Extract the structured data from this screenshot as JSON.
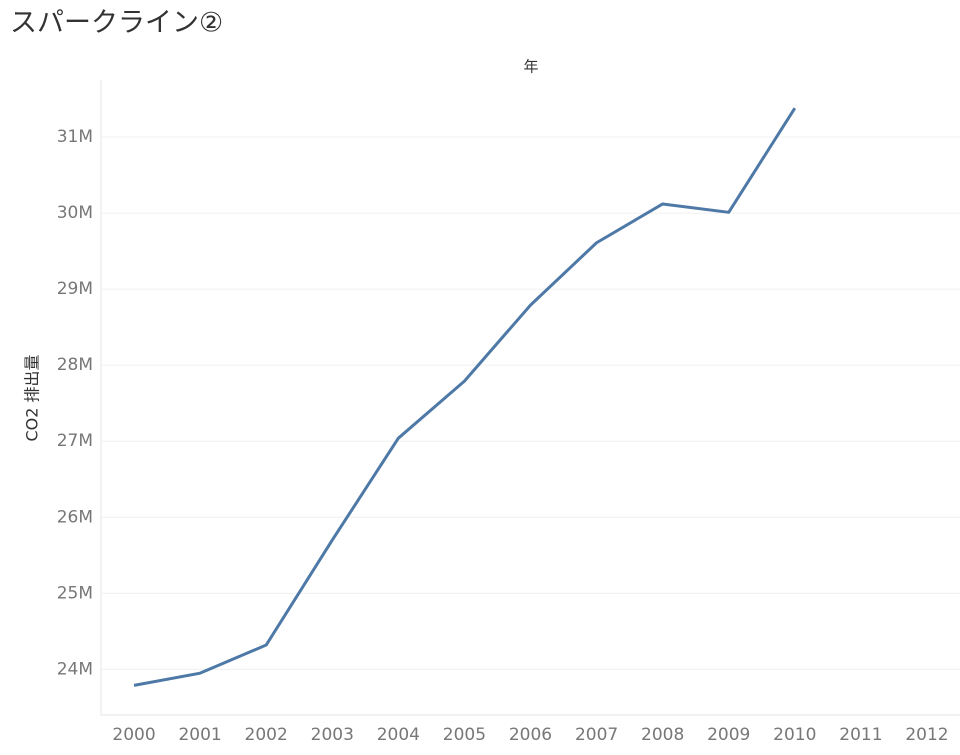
{
  "chart_data": {
    "type": "line",
    "title": "スパークライン②",
    "x_axis_title": "年",
    "y_axis_title": "CO2 排出量",
    "categories": [
      "2000",
      "2001",
      "2002",
      "2003",
      "2004",
      "2005",
      "2006",
      "2007",
      "2008",
      "2009",
      "2010",
      "2011",
      "2012"
    ],
    "series": [
      {
        "name": "CO2 排出量",
        "color": "#4e79a7",
        "values": [
          23790000,
          23950000,
          24320000,
          25700000,
          27040000,
          27790000,
          28790000,
          29610000,
          30120000,
          30010000,
          31380000,
          null,
          null
        ]
      }
    ],
    "ylim": [
      23400000,
      31750000
    ],
    "yticks": [
      {
        "value": 24000000,
        "label": "24M"
      },
      {
        "value": 25000000,
        "label": "25M"
      },
      {
        "value": 26000000,
        "label": "26M"
      },
      {
        "value": 27000000,
        "label": "27M"
      },
      {
        "value": 28000000,
        "label": "28M"
      },
      {
        "value": 29000000,
        "label": "29M"
      },
      {
        "value": 30000000,
        "label": "30M"
      },
      {
        "value": 31000000,
        "label": "31M"
      }
    ],
    "grid": true
  }
}
